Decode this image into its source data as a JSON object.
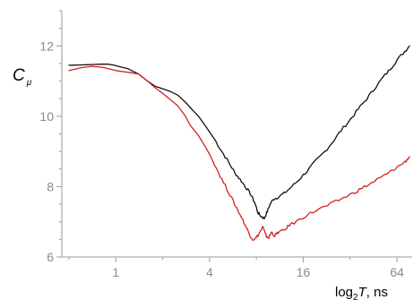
{
  "chart_data": {
    "type": "line",
    "title": "",
    "x_scale": "log2",
    "xlim": [
      0.45,
      80
    ],
    "ylim": [
      6,
      13
    ],
    "x_ticks": [
      1,
      4,
      16,
      64
    ],
    "x_tick_labels": [
      "1",
      "4",
      "16",
      "64"
    ],
    "y_ticks": [
      6,
      8,
      10,
      12
    ],
    "y_tick_labels": [
      "6",
      "8",
      "10",
      "12"
    ],
    "xlabel": {
      "prefix": "log",
      "sub": "2",
      "var": "T",
      "suffix": ", ns"
    },
    "ylabel": {
      "main": "C",
      "sub": "μ"
    },
    "grid": false,
    "legend": "none",
    "series": [
      {
        "color": "#111111",
        "x": [
          0.5,
          0.6,
          0.7,
          0.8,
          0.9,
          1.0,
          1.2,
          1.4,
          1.6,
          1.8,
          2.0,
          2.2,
          2.5,
          2.8,
          3.0,
          3.4,
          3.8,
          4.3,
          4.8,
          5.3,
          5.8,
          6.3,
          6.8,
          7.3,
          7.8,
          8.2,
          8.6,
          9.0,
          9.4,
          9.8,
          10.3,
          11.0,
          12.0,
          13.5,
          15.0,
          17.0,
          19.0,
          22.0,
          25.0,
          28.0,
          32.0,
          36.0,
          41.0,
          46.0,
          52.0,
          58.0,
          64.0,
          72.0,
          77.0
        ],
        "y": [
          11.45,
          11.46,
          11.47,
          11.48,
          11.48,
          11.44,
          11.35,
          11.2,
          11.0,
          10.85,
          10.78,
          10.72,
          10.6,
          10.4,
          10.25,
          10.0,
          9.7,
          9.35,
          9.0,
          8.7,
          8.4,
          8.2,
          8.0,
          7.8,
          7.55,
          7.25,
          7.15,
          7.1,
          7.3,
          7.5,
          7.65,
          7.7,
          7.8,
          8.0,
          8.2,
          8.45,
          8.7,
          9.0,
          9.3,
          9.6,
          9.9,
          10.2,
          10.5,
          10.8,
          11.1,
          11.35,
          11.6,
          11.85,
          12.0
        ]
      },
      {
        "color": "#d62020",
        "x": [
          0.5,
          0.6,
          0.7,
          0.8,
          0.9,
          1.0,
          1.2,
          1.4,
          1.6,
          1.8,
          2.0,
          2.2,
          2.5,
          2.8,
          3.0,
          3.4,
          3.8,
          4.3,
          4.8,
          5.3,
          5.8,
          6.3,
          6.8,
          7.2,
          7.6,
          8.0,
          8.4,
          8.8,
          9.2,
          9.6,
          10.0,
          10.5,
          11.0,
          12.0,
          13.0,
          15.0,
          17.0,
          20.0,
          24.0,
          28.0,
          33.0,
          38.0,
          44.0,
          50.0,
          57.0,
          64.0,
          72.0,
          77.0
        ],
        "y": [
          11.3,
          11.38,
          11.42,
          11.4,
          11.35,
          11.3,
          11.25,
          11.2,
          11.0,
          10.8,
          10.65,
          10.5,
          10.3,
          10.0,
          9.75,
          9.45,
          9.1,
          8.65,
          8.2,
          7.85,
          7.5,
          7.2,
          6.9,
          6.65,
          6.5,
          6.55,
          6.7,
          6.85,
          6.6,
          6.55,
          6.7,
          6.6,
          6.7,
          6.75,
          6.9,
          7.05,
          7.2,
          7.35,
          7.5,
          7.65,
          7.8,
          7.95,
          8.1,
          8.25,
          8.4,
          8.55,
          8.7,
          8.85
        ]
      }
    ]
  }
}
